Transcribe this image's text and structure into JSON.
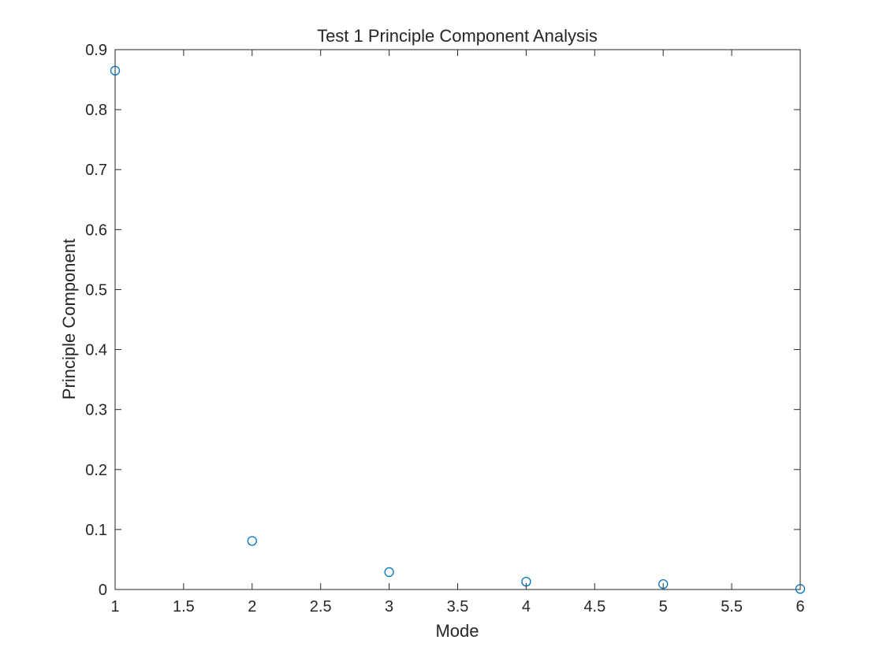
{
  "chart_data": {
    "type": "scatter",
    "title": "Test 1 Principle Component Analysis",
    "xlabel": "Mode",
    "ylabel": "Principle Component",
    "xlim": [
      1,
      6
    ],
    "ylim": [
      0,
      0.9
    ],
    "xticks": [
      "1",
      "1.5",
      "2",
      "2.5",
      "3",
      "3.5",
      "4",
      "4.5",
      "5",
      "5.5",
      "6"
    ],
    "yticks": [
      "0",
      "0.1",
      "0.2",
      "0.3",
      "0.4",
      "0.5",
      "0.6",
      "0.7",
      "0.8",
      "0.9"
    ],
    "grid": false,
    "marker": "circle",
    "series": [
      {
        "color": "#0072BD",
        "x": [
          1,
          2,
          3,
          4,
          5,
          6
        ],
        "y": [
          0.865,
          0.081,
          0.029,
          0.013,
          0.009,
          0.001
        ]
      }
    ]
  }
}
